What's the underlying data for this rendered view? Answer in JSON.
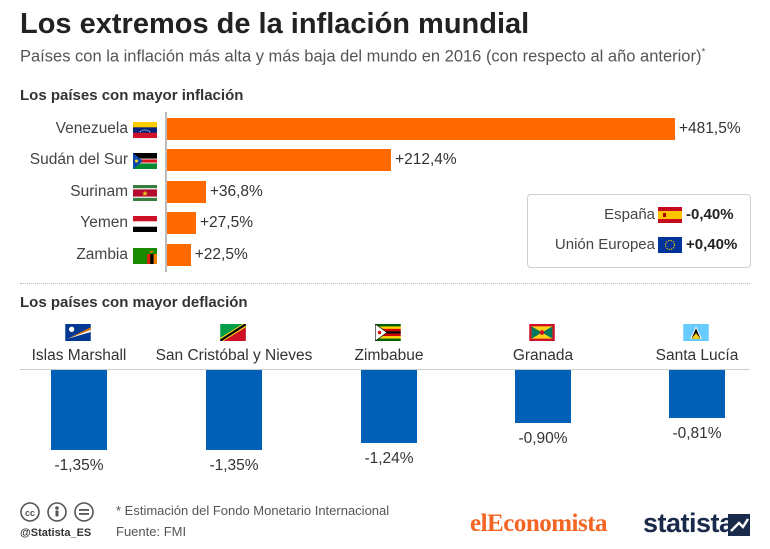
{
  "title": "Los extremos de la inflación mundial",
  "subtitle": "Países con la inflación más alta y más baja del mundo en 2016 (con respecto al año anterior)",
  "subtitle_mark": "*",
  "sections": {
    "inflation": "Los países con mayor inflación",
    "deflation": "Los países con mayor deflación"
  },
  "reference": [
    {
      "name": "España",
      "value_label": "-0,40%",
      "flag": "spain-flag-icon"
    },
    {
      "name": "Unión Europea",
      "value_label": "+0,40%",
      "flag": "eu-flag-icon"
    }
  ],
  "chart_data": [
    {
      "type": "bar",
      "orientation": "horizontal",
      "title": "Los países con mayor inflación",
      "categories": [
        "Venezuela",
        "Sudán del Sur",
        "Surinam",
        "Yemen",
        "Zambia"
      ],
      "values": [
        481.5,
        212.4,
        36.8,
        27.5,
        22.5
      ],
      "value_labels": [
        "+481,5%",
        "+212,4%",
        "+36,8%",
        "+27,5%",
        "+22,5%"
      ],
      "flags": [
        "venezuela-flag-icon",
        "south-sudan-flag-icon",
        "suriname-flag-icon",
        "yemen-flag-icon",
        "zambia-flag-icon"
      ],
      "color": "#ff6a00"
    },
    {
      "type": "bar",
      "orientation": "vertical",
      "title": "Los países con mayor deflación",
      "categories": [
        "Islas Marshall",
        "San Cristóbal y Nieves",
        "Zimbabue",
        "Granada",
        "Santa Lucía"
      ],
      "values": [
        -1.35,
        -1.35,
        -1.24,
        -0.9,
        -0.81
      ],
      "value_labels": [
        "-1,35%",
        "-1,35%",
        "-1,24%",
        "-0,90%",
        "-0,81%"
      ],
      "flags": [
        "marshall-islands-flag-icon",
        "saint-kitts-nevis-flag-icon",
        "zimbabwe-flag-icon",
        "grenada-flag-icon",
        "saint-lucia-flag-icon"
      ],
      "color": "#0060b6"
    }
  ],
  "footer": {
    "note": "* Estimación del Fondo Monetario Internacional",
    "source": "Fuente: FMI",
    "handle": "@Statista_ES",
    "brand_left_a": "el",
    "brand_left_b": "Economista",
    "brand_right": "statista"
  }
}
